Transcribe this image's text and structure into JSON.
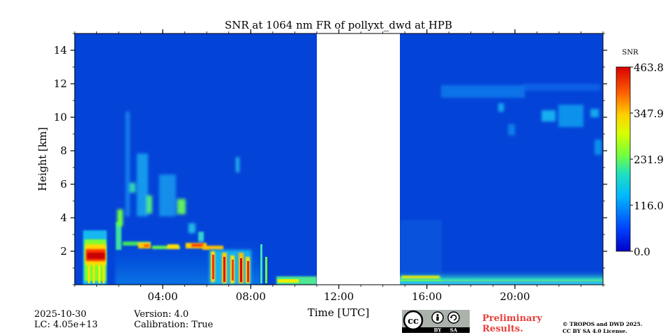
{
  "chart_data": {
    "type": "heatmap",
    "title": "SNR at 1064 nm FR of pollyxt_dwd at HPB",
    "xlabel": "Time [UTC]",
    "ylabel": "Height [km]",
    "x_range_hours": [
      0,
      24
    ],
    "ylim": [
      0,
      15
    ],
    "x_tick_labels": [
      "04:00",
      "08:00",
      "12:00",
      "16:00",
      "20:00"
    ],
    "x_tick_hours": [
      4,
      8,
      12,
      16,
      20
    ],
    "y_ticks": [
      2,
      4,
      6,
      8,
      10,
      12,
      14
    ],
    "no_data_interval_hours": [
      11.0,
      14.8
    ],
    "colorbar": {
      "label": "SNR",
      "min": 0.0,
      "max": 463.8,
      "tick_labels": [
        "0.0",
        "116.0",
        "231.9",
        "347.9",
        "463.8"
      ],
      "tick_values": [
        0.0,
        116.0,
        231.9,
        347.9,
        463.8
      ],
      "colormap": "jet"
    },
    "features": [
      {
        "name": "strong-aerosol-layer",
        "t": [
          0.5,
          1.5
        ],
        "h": [
          1.0,
          2.5
        ],
        "snr": 440
      },
      {
        "name": "boundary-layer-top",
        "t": [
          2.0,
          7.5
        ],
        "h": [
          1.5,
          2.6
        ],
        "snr": 330
      },
      {
        "name": "convective-plumes",
        "t": [
          6.3,
          8.0
        ],
        "h": [
          0.2,
          2.0
        ],
        "snr": 370
      },
      {
        "name": "morning-cirrus",
        "t": [
          2.3,
          5.2
        ],
        "h": [
          3.0,
          9.5
        ],
        "snr": 160
      },
      {
        "name": "afternoon-surface-layer",
        "t": [
          14.8,
          24.0
        ],
        "h": [
          0.0,
          0.6
        ],
        "snr": 240
      },
      {
        "name": "evening-high-cloud",
        "t": [
          16.7,
          24.0
        ],
        "h": [
          10.0,
          12.0
        ],
        "snr": 95
      }
    ]
  },
  "footer": {
    "date": "2025-10-30",
    "lc": "LC: 4.05e+13",
    "version": "Version: 4.0",
    "calibration": "Calibration: True",
    "preliminary_line1": "Preliminary",
    "preliminary_line2": "Results.",
    "copyright_line1": "© TROPOS and DWD 2025.",
    "copyright_line2": "CC BY SA 4.0 License.",
    "cc_badge": {
      "cc": "cc",
      "by": "BY",
      "sa": "SA"
    }
  },
  "colors": {
    "background_low": "#0443d8",
    "no_data": "#ffffff"
  }
}
